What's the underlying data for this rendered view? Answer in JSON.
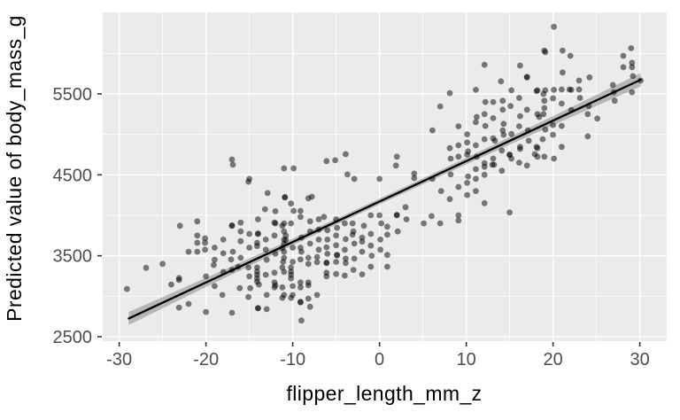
{
  "chart_data": {
    "type": "scatter",
    "title": "",
    "xlabel": "flipper_length_mm_z",
    "ylabel": "Predicted value of body_mass_g",
    "xlim": [
      -31.9,
      33.1
    ],
    "ylim": [
      2445,
      6507
    ],
    "x_ticks": [
      -30,
      -20,
      -10,
      0,
      10,
      20,
      30
    ],
    "x_tick_labels": [
      "-30",
      "-20",
      "-10",
      "0",
      "10",
      "20",
      "30"
    ],
    "y_ticks": [
      2500,
      3500,
      4500,
      5500
    ],
    "y_tick_labels": [
      "2500",
      "3500",
      "4500",
      "5500"
    ],
    "x_minor": [
      -25,
      -15,
      -5,
      5,
      15,
      25
    ],
    "y_minor": [
      3000,
      4000,
      5000,
      6000
    ],
    "grid": true,
    "legend": false,
    "panel_bg": "#EBEBEB",
    "grid_color": "#FFFFFF",
    "tick_color": "#333333",
    "tick_label_color": "#4D4D4D",
    "point_color": "#000000",
    "point_opacity": 0.5,
    "point_radius": 3.4,
    "regression": {
      "intercept": 4170,
      "slope": 50,
      "x_start": -28.9,
      "x_end": 30.1,
      "line_color": "#000000",
      "line_width": 2.3,
      "band_color": "#666666",
      "band_opacity": 0.4,
      "band_halfwidth_center": 35,
      "band_halfwidth_edge": 80
    },
    "points": [
      [
        -29.1,
        3090
      ],
      [
        -26.9,
        3350
      ],
      [
        -25.0,
        3400
      ],
      [
        -24.0,
        3145
      ],
      [
        -23.0,
        3870
      ],
      [
        -23.1,
        3200
      ],
      [
        -23.1,
        3225
      ],
      [
        -23.1,
        2860
      ],
      [
        -22.0,
        2905
      ],
      [
        -22.0,
        3550
      ],
      [
        -21.0,
        3925
      ],
      [
        -21.0,
        3750
      ],
      [
        -21.0,
        3660
      ],
      [
        -21.0,
        3550
      ],
      [
        -20.1,
        3715
      ],
      [
        -20.1,
        3660
      ],
      [
        -20.1,
        3575
      ],
      [
        -20.0,
        3245
      ],
      [
        -20.0,
        2805
      ],
      [
        -19.1,
        3385
      ],
      [
        -19.0,
        3125
      ],
      [
        -19.0,
        3450
      ],
      [
        -19.0,
        3600
      ],
      [
        -18.0,
        3530
      ],
      [
        -18.1,
        3015
      ],
      [
        -18.0,
        3300
      ],
      [
        -18.0,
        3700
      ],
      [
        -17.0,
        3870
      ],
      [
        -17.0,
        3875
      ],
      [
        -17.1,
        3455
      ],
      [
        -17.0,
        2795
      ],
      [
        -16.9,
        4625
      ],
      [
        -17.0,
        4690
      ],
      [
        -17.0,
        3325
      ],
      [
        -16.0,
        3910
      ],
      [
        -16.0,
        3680
      ],
      [
        -16.9,
        3550
      ],
      [
        -16.3,
        3365
      ],
      [
        -16.1,
        3100
      ],
      [
        -16.0,
        3475
      ],
      [
        -16.0,
        3800
      ],
      [
        -15.1,
        4415
      ],
      [
        -15.0,
        4450
      ],
      [
        -15.0,
        3770
      ],
      [
        -15.1,
        3355
      ],
      [
        -15.1,
        2990
      ],
      [
        -14.9,
        3100
      ],
      [
        -15.0,
        3600
      ],
      [
        -15.0,
        3245
      ],
      [
        -14.0,
        3770
      ],
      [
        -14.0,
        3775
      ],
      [
        -14.1,
        3660
      ],
      [
        -14.1,
        3620
      ],
      [
        -14.1,
        3355
      ],
      [
        -14.1,
        3305
      ],
      [
        -14.1,
        3265
      ],
      [
        -14.1,
        3220
      ],
      [
        -14.1,
        3180
      ],
      [
        -14.0,
        2850
      ],
      [
        -14.0,
        2855
      ],
      [
        -13.9,
        3145
      ],
      [
        -14.0,
        3950
      ],
      [
        -13.2,
        4075
      ],
      [
        -12.9,
        4275
      ],
      [
        -13.1,
        3575
      ],
      [
        -13.1,
        3265
      ],
      [
        -13.0,
        3015
      ],
      [
        -13.0,
        2840
      ],
      [
        -13.1,
        3700
      ],
      [
        -13.0,
        3450
      ],
      [
        -12.1,
        3910
      ],
      [
        -12.1,
        3750
      ],
      [
        -12.0,
        3135
      ],
      [
        -12.1,
        3290
      ],
      [
        -12.1,
        3170
      ],
      [
        -12.1,
        3110
      ],
      [
        -12.0,
        3525
      ],
      [
        -12.0,
        3900
      ],
      [
        -12.0,
        4050
      ],
      [
        -11.2,
        3870
      ],
      [
        -11.0,
        4580
      ],
      [
        -11.2,
        3595
      ],
      [
        -11.2,
        3355
      ],
      [
        -11.2,
        3110
      ],
      [
        -11.2,
        2980
      ],
      [
        -11.0,
        3015
      ],
      [
        -11.0,
        3475
      ],
      [
        -11.0,
        3300
      ],
      [
        -11.0,
        3700
      ],
      [
        -11.0,
        3800
      ],
      [
        -11.1,
        3425
      ],
      [
        -11.0,
        3900
      ],
      [
        -11.0,
        3550
      ],
      [
        -11.0,
        3650
      ],
      [
        -10.9,
        4220
      ],
      [
        -10.9,
        4225
      ],
      [
        -10.2,
        4145
      ],
      [
        -10.2,
        3900
      ],
      [
        -10.8,
        3695
      ],
      [
        -10.8,
        3750
      ],
      [
        -10.2,
        3355
      ],
      [
        -10.2,
        3305
      ],
      [
        -10.2,
        3265
      ],
      [
        -10.2,
        3220
      ],
      [
        -10.2,
        2980
      ],
      [
        -10.0,
        3015
      ],
      [
        -10.0,
        3125
      ],
      [
        -10.0,
        3425
      ],
      [
        -10.0,
        3600
      ],
      [
        -9.9,
        4055
      ],
      [
        -9.9,
        4580
      ],
      [
        -9.1,
        4055
      ],
      [
        -9.1,
        3980
      ],
      [
        -9.1,
        3455
      ],
      [
        -9.1,
        3170
      ],
      [
        -9.1,
        3110
      ],
      [
        -9.1,
        2930
      ],
      [
        -9.1,
        2925
      ],
      [
        -9.0,
        2700
      ],
      [
        -9.1,
        3600
      ],
      [
        -9.0,
        3725
      ],
      [
        -9.0,
        3550
      ],
      [
        -8.2,
        4210
      ],
      [
        -8.2,
        3475
      ],
      [
        -8.2,
        3400
      ],
      [
        -8.2,
        3135
      ],
      [
        -8.2,
        3170
      ],
      [
        -8.2,
        2970
      ],
      [
        -8.0,
        2870
      ],
      [
        -8.0,
        3650
      ],
      [
        -8.0,
        3800
      ],
      [
        -8.0,
        3925
      ],
      [
        -7.8,
        4230
      ],
      [
        -7.2,
        3485
      ],
      [
        -7.2,
        3420
      ],
      [
        -7.2,
        3015
      ],
      [
        -7.0,
        3700
      ],
      [
        -7.0,
        3575
      ],
      [
        -7.0,
        3825
      ],
      [
        -7.0,
        3950
      ],
      [
        -6.4,
        3980
      ],
      [
        -6.1,
        3605
      ],
      [
        -6.1,
        3410
      ],
      [
        -6.1,
        3415
      ],
      [
        -6.1,
        3290
      ],
      [
        -6.1,
        3245
      ],
      [
        -6.0,
        3815
      ],
      [
        -6.1,
        4670
      ],
      [
        -6.0,
        3700
      ],
      [
        -6.0,
        3525
      ],
      [
        -5.0,
        3630
      ],
      [
        -4.9,
        3845
      ],
      [
        -4.9,
        3510
      ],
      [
        -4.9,
        3505
      ],
      [
        -5.1,
        4680
      ],
      [
        -5.0,
        3275
      ],
      [
        -5.0,
        3425
      ],
      [
        -5.0,
        3950
      ],
      [
        -5.0,
        3750
      ],
      [
        -4.0,
        3255
      ],
      [
        -3.9,
        3705
      ],
      [
        -3.9,
        3465
      ],
      [
        -3.9,
        3410
      ],
      [
        -3.9,
        4755
      ],
      [
        -3.7,
        4505
      ],
      [
        -4.0,
        3575
      ],
      [
        -4.0,
        3900
      ],
      [
        -2.9,
        3650
      ],
      [
        -3.1,
        3900
      ],
      [
        -3.1,
        3760
      ],
      [
        -2.9,
        3465
      ],
      [
        -2.9,
        4450
      ],
      [
        -3.0,
        3325
      ],
      [
        -3.0,
        3800
      ],
      [
        -2.0,
        3725
      ],
      [
        -1.8,
        3870
      ],
      [
        -2.0,
        3270
      ],
      [
        -2.0,
        3550
      ],
      [
        -2.0,
        3675
      ],
      [
        -1.0,
        4000
      ],
      [
        -1.0,
        3770
      ],
      [
        -1.0,
        3365
      ],
      [
        -0.9,
        3500
      ],
      [
        -1.0,
        3625
      ],
      [
        0.0,
        4000
      ],
      [
        0.2,
        3900
      ],
      [
        0.0,
        4450
      ],
      [
        0.1,
        3700
      ],
      [
        0.1,
        3575
      ],
      [
        0.9,
        3860
      ],
      [
        0.9,
        3760
      ],
      [
        0.9,
        3510
      ],
      [
        0.9,
        3365
      ],
      [
        1.9,
        4615
      ],
      [
        2.0,
        4725
      ],
      [
        2.0,
        4000
      ],
      [
        2.0,
        4005
      ],
      [
        2.1,
        3800
      ],
      [
        3.1,
        3950
      ],
      [
        3.0,
        4100
      ],
      [
        4.0,
        4515
      ],
      [
        4.0,
        4460
      ],
      [
        5.1,
        3900
      ],
      [
        6.0,
        3990
      ],
      [
        7.0,
        3900
      ],
      [
        9.1,
        4000
      ],
      [
        9.1,
        3935
      ],
      [
        11.1,
        4300
      ],
      [
        20.1,
        6330
      ],
      [
        19.1,
        6015
      ],
      [
        19.0,
        6035
      ],
      [
        21.1,
        6035
      ],
      [
        22.0,
        5970
      ],
      [
        28.1,
        5970
      ],
      [
        29.0,
        6065
      ],
      [
        12.1,
        5860
      ],
      [
        16.2,
        5850
      ],
      [
        17.0,
        5705
      ],
      [
        17.0,
        5710
      ],
      [
        21.1,
        5765
      ],
      [
        28.1,
        5830
      ],
      [
        29.1,
        5885
      ],
      [
        29.1,
        5830
      ],
      [
        29.2,
        5720
      ],
      [
        14.0,
        5655
      ],
      [
        15.2,
        5545
      ],
      [
        23.0,
        5665
      ],
      [
        24.2,
        5705
      ],
      [
        8.1,
        5510
      ],
      [
        18.1,
        5535
      ],
      [
        18.9,
        5500
      ],
      [
        18.2,
        5545
      ],
      [
        19.1,
        5545
      ],
      [
        21.0,
        5555
      ],
      [
        21.9,
        5555
      ],
      [
        23.0,
        5555
      ],
      [
        26.9,
        5610
      ],
      [
        30.1,
        5665
      ],
      [
        12.2,
        5400
      ],
      [
        14.2,
        5415
      ],
      [
        7.0,
        5345
      ],
      [
        19.0,
        5415
      ],
      [
        20.0,
        5445
      ],
      [
        21.0,
        5380
      ],
      [
        27.0,
        5520
      ],
      [
        27.1,
        5415
      ],
      [
        29.1,
        5520
      ],
      [
        19.0,
        5325
      ],
      [
        14.2,
        5305
      ],
      [
        17.0,
        5305
      ],
      [
        18.9,
        5250
      ],
      [
        18.2,
        5250
      ],
      [
        24.0,
        5250
      ],
      [
        25.1,
        5195
      ],
      [
        11.2,
        5215
      ],
      [
        16.2,
        5225
      ],
      [
        18.4,
        5215
      ],
      [
        12.2,
        5105
      ],
      [
        19.1,
        5060
      ],
      [
        20.0,
        5115
      ],
      [
        21.0,
        5105
      ],
      [
        14.3,
        5130
      ],
      [
        6.1,
        5050
      ],
      [
        14.2,
        5050
      ],
      [
        14.3,
        4995
      ],
      [
        15.2,
        5005
      ],
      [
        20.0,
        4995
      ],
      [
        24.0,
        4975
      ],
      [
        10.1,
        5000
      ],
      [
        13.1,
        5200
      ],
      [
        15.1,
        5350
      ],
      [
        16.1,
        5450
      ],
      [
        11.1,
        5150
      ],
      [
        12.1,
        5250
      ],
      [
        16.1,
        5100
      ],
      [
        17.1,
        5050
      ],
      [
        10.1,
        4900
      ],
      [
        13.1,
        4950
      ],
      [
        9.1,
        5100
      ],
      [
        12.1,
        4940
      ],
      [
        13.3,
        4920
      ],
      [
        11.1,
        4865
      ],
      [
        16.2,
        4845
      ],
      [
        17.2,
        4920
      ],
      [
        18.8,
        4940
      ],
      [
        8.1,
        4830
      ],
      [
        9.1,
        4865
      ],
      [
        10.2,
        4790
      ],
      [
        8.2,
        4700
      ],
      [
        9.1,
        4725
      ],
      [
        11.2,
        4725
      ],
      [
        12.1,
        4645
      ],
      [
        13.2,
        4625
      ],
      [
        15.0,
        4745
      ],
      [
        15.0,
        4750
      ],
      [
        15.2,
        4700
      ],
      [
        16.2,
        4820
      ],
      [
        18.1,
        4845
      ],
      [
        17.9,
        4755
      ],
      [
        17.0,
        4615
      ],
      [
        21.0,
        4845
      ],
      [
        18.2,
        4830
      ],
      [
        14.1,
        4800
      ],
      [
        10.1,
        4750
      ],
      [
        13.1,
        4700
      ],
      [
        19.0,
        4725
      ],
      [
        18.2,
        4725
      ],
      [
        8.2,
        4505
      ],
      [
        10.2,
        4480
      ],
      [
        11.1,
        4570
      ],
      [
        13.0,
        4625
      ],
      [
        12.1,
        4600
      ],
      [
        14.1,
        4550
      ],
      [
        10.1,
        4400
      ],
      [
        11.1,
        4450
      ],
      [
        9.1,
        4350
      ],
      [
        12.1,
        4500
      ],
      [
        15.0,
        4035
      ],
      [
        10.1,
        4250
      ],
      [
        8.1,
        4200
      ],
      [
        12.1,
        4150
      ],
      [
        7.1,
        4300
      ],
      [
        16.1,
        4650
      ],
      [
        20.1,
        4700
      ],
      [
        22.1,
        5300
      ],
      [
        23.1,
        5450
      ],
      [
        22.1,
        5550
      ],
      [
        24.1,
        5350
      ],
      [
        20.1,
        5550
      ],
      [
        13.1,
        5400
      ],
      [
        11.1,
        5550
      ],
      [
        6.1,
        4450
      ]
    ]
  }
}
